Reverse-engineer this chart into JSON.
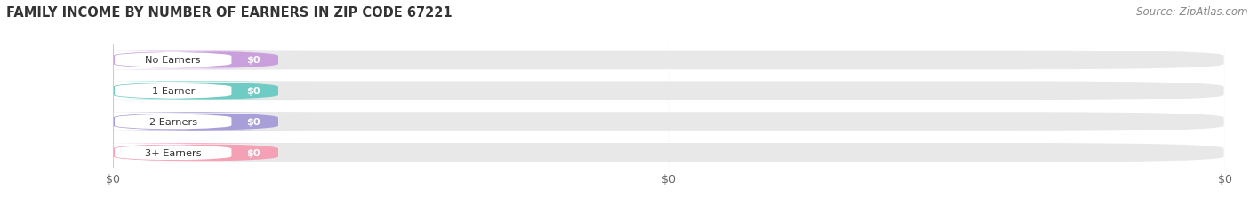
{
  "title": "FAMILY INCOME BY NUMBER OF EARNERS IN ZIP CODE 67221",
  "source": "Source: ZipAtlas.com",
  "categories": [
    "No Earners",
    "1 Earner",
    "2 Earners",
    "3+ Earners"
  ],
  "values": [
    0,
    0,
    0,
    0
  ],
  "bar_colors": [
    "#c9a0dc",
    "#6eccc4",
    "#a89fd8",
    "#f4a0b5"
  ],
  "background_color": "#ffffff",
  "bar_bg_color": "#e8e8e8",
  "value_label": "$0",
  "figsize": [
    14.06,
    2.32
  ],
  "dpi": 100
}
